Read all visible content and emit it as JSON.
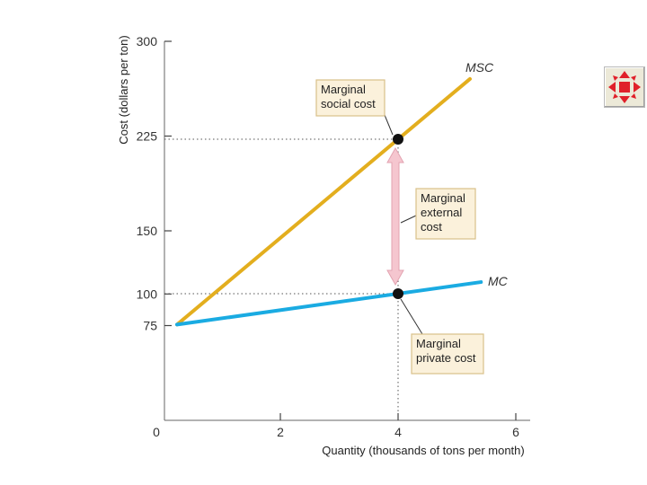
{
  "chart_data": {
    "type": "line",
    "title": "",
    "xlabel": "Quantity (thousands of tons per month)",
    "ylabel": "Cost (dollars per ton)",
    "xlim": [
      0,
      6
    ],
    "ylim": [
      0,
      300
    ],
    "x_ticks": [
      0,
      2,
      4,
      6
    ],
    "y_ticks": [
      75,
      100,
      150,
      225,
      300
    ],
    "series": [
      {
        "name": "MSC",
        "color": "#e3ae1e",
        "x": [
          0,
          5.3
        ],
        "y": [
          75,
          273.75
        ]
      },
      {
        "name": "MC",
        "color": "#1aabe2",
        "x": [
          0,
          5.5
        ],
        "y": [
          75,
          109.4
        ]
      }
    ],
    "points": [
      {
        "x": 4,
        "y": 225
      },
      {
        "x": 4,
        "y": 100
      }
    ],
    "annotations": [
      {
        "id": "social",
        "lines": [
          "Marginal",
          "social cost"
        ]
      },
      {
        "id": "external",
        "lines": [
          "Marginal",
          "external",
          "cost"
        ]
      },
      {
        "id": "private",
        "lines": [
          "Marginal",
          "private cost"
        ]
      }
    ],
    "colors": {
      "box_fill": "#fbf1db",
      "box_stroke": "#d9c08a",
      "arrow": "#f5c6cf",
      "arrow_stroke": "#e3a3b1"
    }
  },
  "nav_button": {
    "icon": "move-arrows-icon",
    "color": "#e0202a"
  }
}
